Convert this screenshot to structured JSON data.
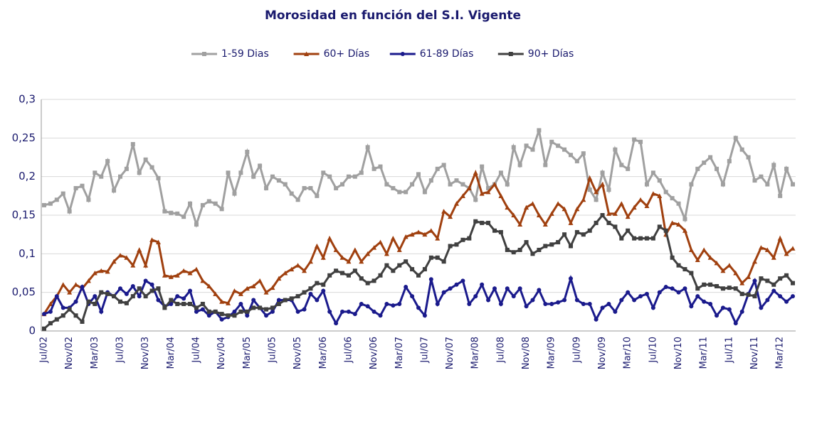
{
  "chart_data": {
    "type": "line",
    "title": "Morosidad en función del S.I. Vigente",
    "categories": [
      "Jul/02",
      null,
      null,
      null,
      "Nov/02",
      null,
      null,
      null,
      "Mar/03",
      null,
      null,
      null,
      "Jul/03",
      null,
      null,
      null,
      "Nov/03",
      null,
      null,
      null,
      "Mar/04",
      null,
      null,
      null,
      "Jul/04",
      null,
      null,
      null,
      "Nov/04",
      null,
      null,
      null,
      "Mar/05",
      null,
      null,
      null,
      "Jul/05",
      null,
      null,
      null,
      "Nov/05",
      null,
      null,
      null,
      "Mar/06",
      null,
      null,
      null,
      "Jul/06",
      null,
      null,
      null,
      "Nov/06",
      null,
      null,
      null,
      "Mar/07",
      null,
      null,
      null,
      "Jul/07",
      null,
      null,
      null,
      "Nov/07",
      null,
      null,
      null,
      "Mar/08",
      null,
      null,
      null,
      "Jul/08",
      null,
      null,
      null,
      "Nov/08",
      null,
      null,
      null,
      "Mar/09",
      null,
      null,
      null,
      "Jul/09",
      null,
      null,
      null,
      "Nov/09",
      null,
      null,
      null,
      "Mar/10",
      null,
      null,
      null,
      "Jul/10",
      null,
      null,
      null,
      "Nov/10",
      null,
      null,
      null,
      "Mar/11",
      null,
      null,
      null,
      "Jul/11",
      null,
      null,
      null,
      "Nov/11",
      null,
      null,
      null,
      "Mar/12",
      null,
      null
    ],
    "series": [
      {
        "name": "1-59 Dias",
        "color": "#a0a0a0",
        "marker": "square",
        "values": [
          0.163,
          0.165,
          0.17,
          0.178,
          0.155,
          0.185,
          0.188,
          0.17,
          0.205,
          0.2,
          0.22,
          0.182,
          0.2,
          0.21,
          0.242,
          0.205,
          0.222,
          0.212,
          0.198,
          0.155,
          0.153,
          0.152,
          0.148,
          0.165,
          0.138,
          0.163,
          0.168,
          0.165,
          0.158,
          0.205,
          0.178,
          0.205,
          0.232,
          0.2,
          0.214,
          0.185,
          0.2,
          0.195,
          0.19,
          0.178,
          0.17,
          0.185,
          0.185,
          0.175,
          0.205,
          0.2,
          0.185,
          0.19,
          0.2,
          0.2,
          0.205,
          0.238,
          0.21,
          0.213,
          0.19,
          0.185,
          0.18,
          0.18,
          0.19,
          0.203,
          0.18,
          0.195,
          0.21,
          0.215,
          0.19,
          0.195,
          0.19,
          0.185,
          0.17,
          0.213,
          0.185,
          0.19,
          0.205,
          0.19,
          0.238,
          0.215,
          0.24,
          0.235,
          0.26,
          0.215,
          0.245,
          0.24,
          0.235,
          0.228,
          0.22,
          0.23,
          0.183,
          0.17,
          0.205,
          0.183,
          0.235,
          0.215,
          0.21,
          0.248,
          0.245,
          0.19,
          0.205,
          0.195,
          0.18,
          0.172,
          0.165,
          0.145,
          0.19,
          0.21,
          0.218,
          0.225,
          0.21,
          0.19,
          0.22,
          0.25,
          0.235,
          0.225,
          0.195,
          0.2,
          0.19,
          0.215,
          0.175,
          0.21,
          0.19
        ]
      },
      {
        "name": "60+ Días",
        "color": "#a0400f",
        "marker": "triangle",
        "values": [
          0.022,
          0.035,
          0.045,
          0.06,
          0.05,
          0.06,
          0.055,
          0.065,
          0.075,
          0.078,
          0.077,
          0.09,
          0.098,
          0.095,
          0.085,
          0.105,
          0.085,
          0.118,
          0.115,
          0.072,
          0.07,
          0.072,
          0.078,
          0.075,
          0.08,
          0.065,
          0.058,
          0.048,
          0.038,
          0.036,
          0.052,
          0.048,
          0.055,
          0.058,
          0.065,
          0.05,
          0.056,
          0.068,
          0.075,
          0.08,
          0.085,
          0.078,
          0.09,
          0.11,
          0.095,
          0.12,
          0.105,
          0.095,
          0.09,
          0.105,
          0.09,
          0.1,
          0.108,
          0.115,
          0.1,
          0.12,
          0.105,
          0.122,
          0.125,
          0.128,
          0.125,
          0.13,
          0.12,
          0.155,
          0.148,
          0.165,
          0.175,
          0.185,
          0.205,
          0.178,
          0.18,
          0.19,
          0.175,
          0.16,
          0.15,
          0.138,
          0.16,
          0.165,
          0.15,
          0.138,
          0.152,
          0.165,
          0.158,
          0.14,
          0.158,
          0.17,
          0.198,
          0.18,
          0.19,
          0.152,
          0.152,
          0.165,
          0.148,
          0.16,
          0.17,
          0.162,
          0.178,
          0.175,
          0.125,
          0.14,
          0.138,
          0.13,
          0.105,
          0.092,
          0.105,
          0.095,
          0.088,
          0.078,
          0.085,
          0.075,
          0.062,
          0.07,
          0.09,
          0.108,
          0.105,
          0.095,
          0.12,
          0.1,
          0.107
        ]
      },
      {
        "name": "61-89 Días",
        "color": "#1a1a8c",
        "marker": "circle",
        "values": [
          0.022,
          0.025,
          0.045,
          0.03,
          0.03,
          0.038,
          0.057,
          0.035,
          0.045,
          0.025,
          0.05,
          0.045,
          0.055,
          0.048,
          0.058,
          0.045,
          0.065,
          0.06,
          0.04,
          0.032,
          0.035,
          0.045,
          0.042,
          0.052,
          0.025,
          0.028,
          0.02,
          0.025,
          0.015,
          0.018,
          0.025,
          0.035,
          0.02,
          0.04,
          0.03,
          0.02,
          0.025,
          0.04,
          0.04,
          0.04,
          0.025,
          0.028,
          0.048,
          0.04,
          0.052,
          0.025,
          0.01,
          0.025,
          0.025,
          0.022,
          0.035,
          0.032,
          0.025,
          0.02,
          0.035,
          0.033,
          0.035,
          0.057,
          0.045,
          0.03,
          0.02,
          0.067,
          0.035,
          0.05,
          0.055,
          0.06,
          0.065,
          0.035,
          0.045,
          0.06,
          0.04,
          0.055,
          0.035,
          0.055,
          0.045,
          0.055,
          0.032,
          0.04,
          0.053,
          0.035,
          0.035,
          0.037,
          0.04,
          0.068,
          0.04,
          0.035,
          0.035,
          0.015,
          0.03,
          0.035,
          0.025,
          0.04,
          0.05,
          0.04,
          0.045,
          0.048,
          0.03,
          0.05,
          0.057,
          0.055,
          0.05,
          0.055,
          0.032,
          0.045,
          0.038,
          0.035,
          0.02,
          0.03,
          0.028,
          0.01,
          0.025,
          0.048,
          0.065,
          0.03,
          0.04,
          0.052,
          0.045,
          0.038,
          0.045
        ]
      },
      {
        "name": "90+ Días",
        "color": "#404040",
        "marker": "square",
        "values": [
          0.003,
          0.01,
          0.015,
          0.02,
          0.028,
          0.02,
          0.012,
          0.038,
          0.035,
          0.05,
          0.048,
          0.045,
          0.038,
          0.036,
          0.045,
          0.055,
          0.045,
          0.052,
          0.055,
          0.03,
          0.04,
          0.035,
          0.035,
          0.035,
          0.03,
          0.035,
          0.025,
          0.025,
          0.022,
          0.02,
          0.02,
          0.025,
          0.025,
          0.03,
          0.03,
          0.028,
          0.03,
          0.035,
          0.04,
          0.042,
          0.045,
          0.05,
          0.055,
          0.062,
          0.06,
          0.072,
          0.078,
          0.075,
          0.072,
          0.078,
          0.068,
          0.062,
          0.065,
          0.072,
          0.085,
          0.078,
          0.085,
          0.09,
          0.08,
          0.072,
          0.08,
          0.095,
          0.095,
          0.09,
          0.11,
          0.112,
          0.118,
          0.12,
          0.142,
          0.14,
          0.14,
          0.13,
          0.128,
          0.105,
          0.102,
          0.105,
          0.115,
          0.1,
          0.105,
          0.11,
          0.112,
          0.115,
          0.125,
          0.11,
          0.128,
          0.125,
          0.13,
          0.14,
          0.15,
          0.14,
          0.135,
          0.12,
          0.13,
          0.12,
          0.12,
          0.12,
          0.12,
          0.135,
          0.13,
          0.095,
          0.085,
          0.08,
          0.075,
          0.055,
          0.06,
          0.06,
          0.058,
          0.055,
          0.056,
          0.055,
          0.048,
          0.047,
          0.045,
          0.068,
          0.065,
          0.06,
          0.068,
          0.072,
          0.062
        ]
      }
    ],
    "ylim": [
      0,
      0.3
    ],
    "yticks": [
      0,
      {
        "value": 0.05,
        "label": "0,05"
      },
      {
        "value": 0.1,
        "label": "0,1"
      },
      {
        "value": 0.15,
        "label": "0,15"
      },
      {
        "value": 0.2,
        "label": "0,2"
      },
      {
        "value": 0.25,
        "label": "0,25"
      },
      {
        "value": 0.3,
        "label": "0,3"
      }
    ],
    "grid": true,
    "legend": "top"
  }
}
